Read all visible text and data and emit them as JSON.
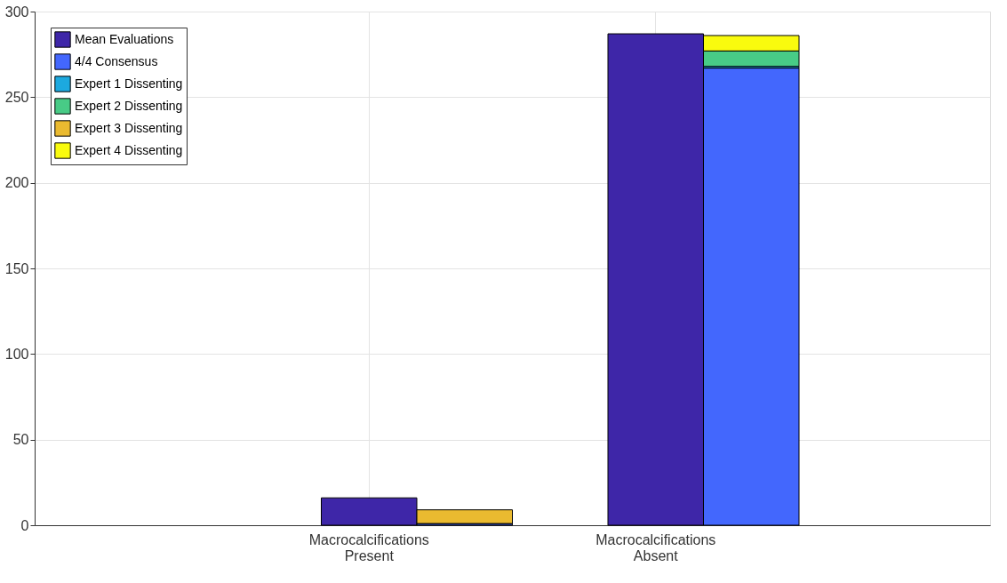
{
  "chart_data": {
    "type": "bar",
    "stacked": true,
    "categories": [
      null,
      null,
      null,
      "Macrocalcifications Present",
      null,
      null,
      "Macrocalcifications Absent",
      null,
      null,
      null
    ],
    "series": [
      {
        "name": "Mean Evaluations",
        "color": "#3e26a8",
        "values": [
          null,
          null,
          null,
          16,
          null,
          null,
          287,
          null,
          null,
          null
        ]
      },
      {
        "name": "4/4 Consensus",
        "color": "#4367fd",
        "values": [
          null,
          null,
          null,
          null,
          1,
          null,
          null,
          267,
          null,
          null
        ]
      },
      {
        "name": "Expert 1 Dissenting",
        "color": "#1ca9df",
        "values": [
          null,
          null,
          null,
          null,
          null,
          null,
          null,
          1,
          null,
          null
        ]
      },
      {
        "name": "Expert 2 Dissenting",
        "color": "#48cb86",
        "values": [
          null,
          null,
          null,
          null,
          null,
          null,
          null,
          9,
          null,
          null
        ]
      },
      {
        "name": "Expert 3 Dissenting",
        "color": "#eaba30",
        "values": [
          null,
          null,
          null,
          null,
          8,
          null,
          null,
          null,
          null,
          null
        ]
      },
      {
        "name": "Expert 4 Dissenting",
        "color": "#f9fb0e",
        "values": [
          null,
          null,
          null,
          null,
          null,
          null,
          null,
          9,
          null,
          null
        ]
      }
    ],
    "ylim": [
      0,
      300
    ],
    "yticks": [
      0,
      50,
      100,
      150,
      200,
      250,
      300
    ],
    "grid": true,
    "legend": "top left"
  }
}
